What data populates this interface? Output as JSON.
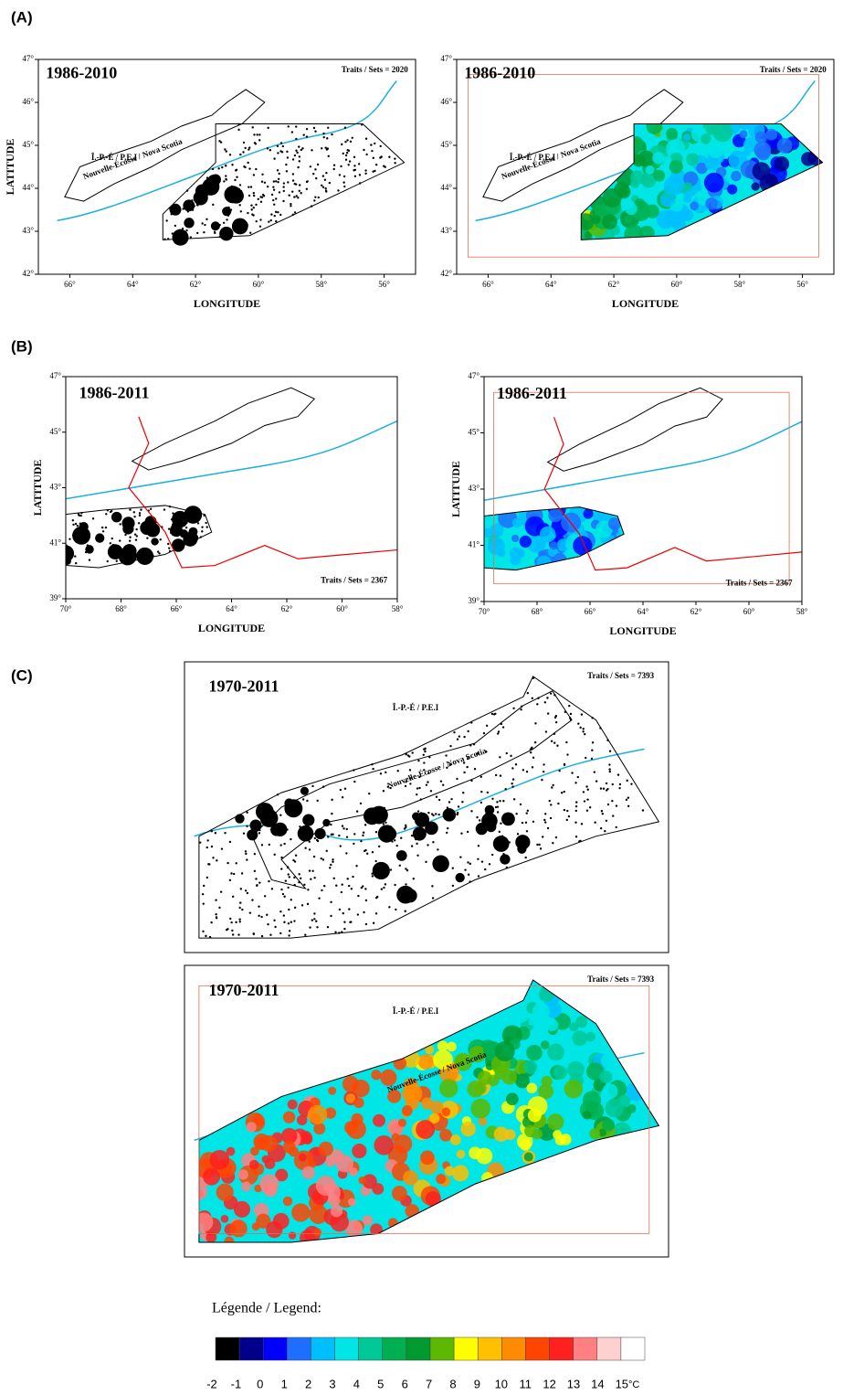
{
  "panels": [
    {
      "label": "(A)",
      "maps": [
        {
          "period": "1986-2010",
          "sets": "Traits / Sets = 2020",
          "region": "Nouvelle-Écosse / Nova Scotia",
          "island": "Î.-P.-É / P.E.I",
          "ylabel": "LATITUDE",
          "xlabel": "LONGITUDE",
          "xticks": [
            "66°",
            "64°",
            "62°",
            "60°",
            "58°",
            "56°"
          ],
          "yticks": [
            "47°",
            "46°",
            "45°",
            "44°",
            "43°",
            "42°"
          ]
        },
        {
          "period": "1986-2010",
          "sets": "Traits / Sets = 2020",
          "region": "Nouvelle-Écosse / Nova Scotia",
          "island": "Î.-P.-É / P.E.I",
          "xlabel": "LONGITUDE",
          "xticks": [
            "66°",
            "64°",
            "62°",
            "60°",
            "58°",
            "56°"
          ],
          "yticks": [
            "47°",
            "46°",
            "45°",
            "44°",
            "43°",
            "42°"
          ]
        }
      ]
    },
    {
      "label": "(B)",
      "maps": [
        {
          "period": "1986-2011",
          "sets": "Traits / Sets = 2367",
          "ylabel": "LATITUDE",
          "xlabel": "LONGITUDE",
          "xticks": [
            "70°",
            "68°",
            "66°",
            "64°",
            "62°",
            "60°",
            "58°"
          ],
          "yticks": [
            "47°",
            "45°",
            "43°",
            "41°",
            "39°"
          ]
        },
        {
          "period": "1986-2011",
          "sets": "Traits / Sets = 2367",
          "ylabel": "LATITUDE",
          "xlabel": "LONGITUDE",
          "xticks": [
            "70°",
            "68°",
            "66°",
            "64°",
            "62°",
            "60°",
            "58°"
          ],
          "yticks": [
            "47°",
            "45°",
            "43°",
            "41°",
            "39°"
          ]
        }
      ]
    },
    {
      "label": "(C)",
      "maps": [
        {
          "period": "1970-2011",
          "sets": "Traits / Sets = 7393",
          "region": "Nouvelle-Écosse / Nova Scotia",
          "island": "Î.-P.-É / P.E.I"
        },
        {
          "period": "1970-2011",
          "sets": "Traits / Sets = 7393",
          "region": "Nouvelle-Écosse / Nova Scotia",
          "island": "Î.-P.-É / P.E.I"
        }
      ]
    }
  ],
  "legend": {
    "title": "Légende / Legend:",
    "ticks": [
      -2,
      -1,
      0,
      1,
      2,
      3,
      4,
      5,
      6,
      7,
      8,
      9,
      10,
      11,
      12,
      13,
      14,
      15
    ],
    "unit": "°C",
    "colors": [
      "#000000",
      "#00008b",
      "#0000ff",
      "#1e6fff",
      "#00bfff",
      "#00e5e5",
      "#00c896",
      "#00b050",
      "#009a30",
      "#5cb800",
      "#ffff00",
      "#ffc000",
      "#ff8c00",
      "#ff4500",
      "#ff2020",
      "#ff8080",
      "#ffd0d0",
      "#ffffff"
    ]
  }
}
